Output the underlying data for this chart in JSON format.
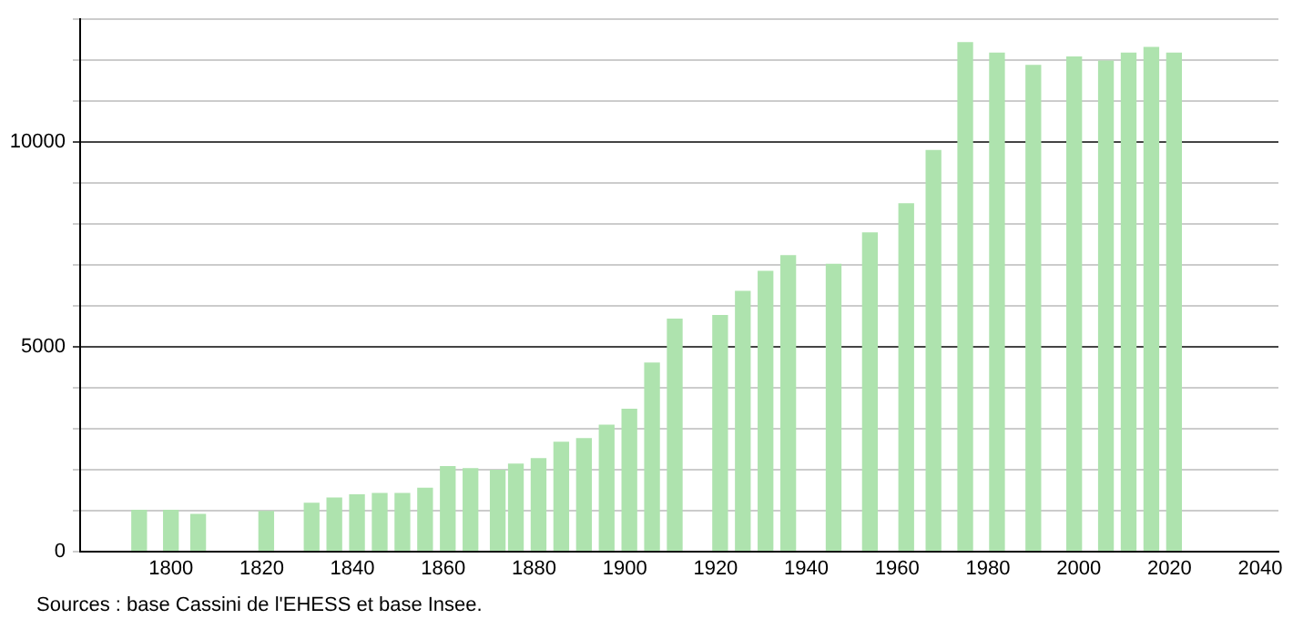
{
  "chart_data": {
    "type": "bar",
    "color": "#aee3ae",
    "x": [
      1793,
      1800,
      1806,
      1821,
      1831,
      1836,
      1841,
      1846,
      1851,
      1856,
      1861,
      1866,
      1872,
      1876,
      1881,
      1886,
      1891,
      1896,
      1901,
      1906,
      1911,
      1921,
      1926,
      1931,
      1936,
      1946,
      1954,
      1962,
      1968,
      1975,
      1982,
      1990,
      1999,
      2006,
      2011,
      2016,
      2021
    ],
    "values": [
      1000,
      1000,
      900,
      970,
      1170,
      1300,
      1380,
      1410,
      1410,
      1540,
      2070,
      2020,
      1980,
      2130,
      2260,
      2660,
      2750,
      3080,
      3470,
      4600,
      5670,
      5760,
      6350,
      6840,
      7220,
      7010,
      7780,
      8490,
      9790,
      12430,
      12170,
      11870,
      12080,
      11980,
      12170,
      12310,
      12170
    ],
    "xlim": [
      1780,
      2044
    ],
    "xticks": [
      1800,
      1820,
      1840,
      1860,
      1880,
      1900,
      1920,
      1940,
      1960,
      1980,
      2000,
      2020,
      2040
    ],
    "ylim": [
      0,
      13000
    ],
    "yticks": [
      0,
      {
        "value": 1000,
        "label": null
      },
      {
        "value": 2000,
        "label": null
      },
      {
        "value": 3000,
        "label": null
      },
      {
        "value": 4000,
        "label": null
      },
      5000,
      {
        "value": 6000,
        "label": null
      },
      {
        "value": 7000,
        "label": null
      },
      {
        "value": 8000,
        "label": null
      },
      {
        "value": 9000,
        "label": null
      },
      10000,
      {
        "value": 11000,
        "label": null
      },
      {
        "value": 12000,
        "label": null
      },
      {
        "value": 13000,
        "label": null
      }
    ],
    "grid": "y",
    "legend": false,
    "annotations": [
      "Sources : base Cassini de l'EHESS et base Insee."
    ]
  }
}
